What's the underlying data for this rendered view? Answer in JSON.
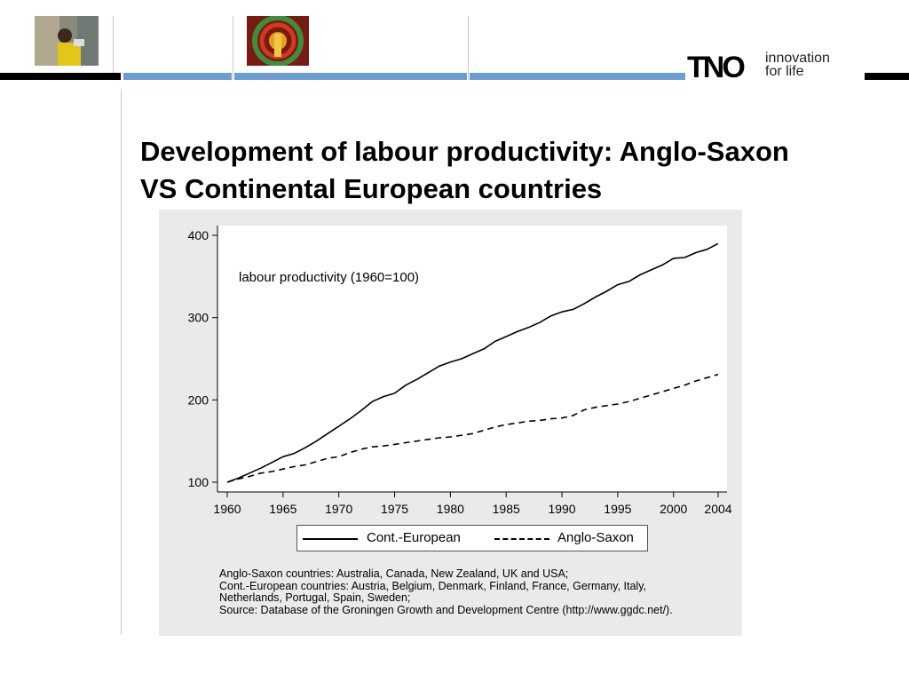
{
  "header": {
    "logo": {
      "brand": "TNO",
      "tagline_line1": "innovation",
      "tagline_line2": "for life"
    },
    "colors": {
      "stripe_blue": "#6a9ed3",
      "stripe_black": "#000000"
    }
  },
  "slide": {
    "title_line1": "Development of labour productivity: Anglo-Saxon",
    "title_line2": "VS Continental European countries"
  },
  "chart_data": {
    "type": "line",
    "title": "labour productivity (1960=100)",
    "xlabel": "",
    "ylabel": "",
    "x": [
      1960,
      1961,
      1962,
      1963,
      1964,
      1965,
      1966,
      1967,
      1968,
      1969,
      1970,
      1971,
      1972,
      1973,
      1974,
      1975,
      1976,
      1977,
      1978,
      1979,
      1980,
      1981,
      1982,
      1983,
      1984,
      1985,
      1986,
      1987,
      1988,
      1989,
      1990,
      1991,
      1992,
      1993,
      1994,
      1995,
      1996,
      1997,
      1998,
      1999,
      2000,
      2001,
      2002,
      2003,
      2004
    ],
    "xticks": [
      "1960",
      "1965",
      "1970",
      "1975",
      "1980",
      "1985",
      "1990",
      "1995",
      "2000",
      "2004"
    ],
    "yticks": [
      "100",
      "200",
      "300",
      "400"
    ],
    "xlim": [
      1960,
      2004
    ],
    "ylim": [
      100,
      400
    ],
    "grid": false,
    "legend_position": "bottom",
    "series": [
      {
        "name": "Cont.-European",
        "style": "solid",
        "values": [
          100,
          105,
          111,
          117,
          124,
          131,
          135,
          142,
          150,
          159,
          168,
          177,
          187,
          198,
          204,
          208,
          218,
          225,
          233,
          241,
          246,
          250,
          256,
          262,
          271,
          277,
          283,
          288,
          294,
          302,
          307,
          310,
          317,
          325,
          332,
          340,
          344,
          352,
          358,
          364,
          372,
          373,
          379,
          383,
          390
        ]
      },
      {
        "name": "Anglo-Saxon",
        "style": "dashed",
        "values": [
          100,
          104,
          107,
          111,
          113,
          116,
          119,
          121,
          125,
          129,
          131,
          136,
          140,
          143,
          144,
          146,
          148,
          150,
          152,
          154,
          155,
          157,
          159,
          163,
          167,
          170,
          172,
          174,
          175,
          177,
          178,
          181,
          188,
          191,
          193,
          195,
          198,
          202,
          206,
          210,
          214,
          218,
          223,
          227,
          231
        ]
      }
    ],
    "footnote": [
      "Anglo-Saxon countries: Australia, Canada, New Zealand, UK and USA;",
      "Cont.-European countries: Austria, Belgium, Denmark, Finland, France, Germany, Italy,",
      "Netherlands, Portugal, Spain, Sweden;",
      "Source: Database of the Groningen Growth and Development Centre (http://www.ggdc.net/)."
    ]
  }
}
